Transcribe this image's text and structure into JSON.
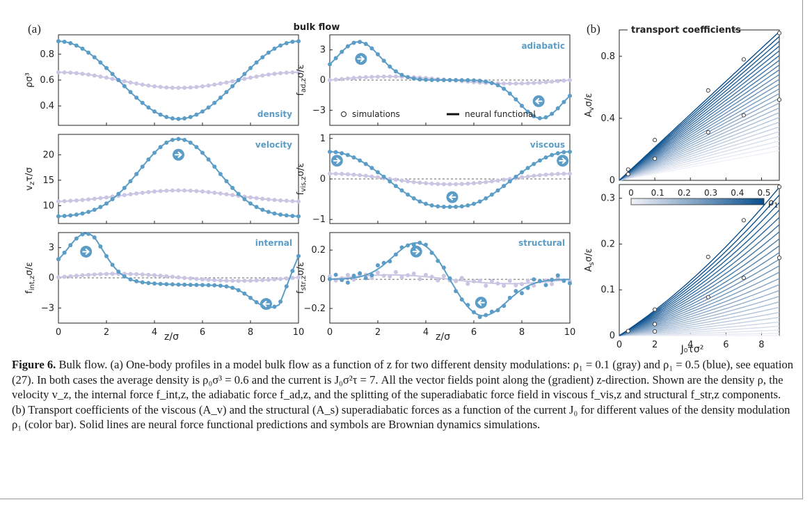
{
  "figure_title": "bulk flow",
  "panel_a_label": "(a)",
  "panel_b_label": "(b)",
  "legend_simulations": "simulations",
  "legend_neural": "neural functional",
  "colors": {
    "rho05": "#5b9dc6",
    "rho01": "#c9c5e2",
    "axis": "#222222"
  },
  "icons": {
    "flow_arrow": "right-arrow-circle-icon",
    "back_arrow": "left-arrow-circle-icon"
  },
  "chart_data": [
    {
      "id": "density",
      "type": "line",
      "tag": "density",
      "ylabel": "ρσ³",
      "xlabel": "",
      "xlim": [
        0,
        10
      ],
      "ylim": [
        0.25,
        0.95
      ],
      "yticks": [
        0.4,
        0.6,
        0.8
      ],
      "xticks": [
        0,
        2,
        4,
        6,
        8,
        10
      ],
      "series": [
        {
          "name": "ρ1 = 0.5",
          "curve": "dens05",
          "sim": "dens05"
        },
        {
          "name": "ρ1 = 0.1",
          "curve": "dens01",
          "sim": "dens01"
        }
      ]
    },
    {
      "id": "adiabatic",
      "type": "line",
      "tag": "adiabatic",
      "ylabel": "f_ad,z σ/ε",
      "xlabel": "",
      "xlim": [
        0,
        10
      ],
      "ylim": [
        -4.5,
        4.5
      ],
      "yticks": [
        -3,
        0,
        3
      ],
      "xticks": [
        0,
        2,
        4,
        6,
        8,
        10
      ],
      "zero_line": true,
      "series": [
        {
          "name": "ρ1 = 0.5",
          "curve": "ad05",
          "sim": "ad05"
        },
        {
          "name": "ρ1 = 0.1",
          "curve": "ad01",
          "sim": "ad01"
        }
      ]
    },
    {
      "id": "velocity",
      "type": "line",
      "tag": "velocity",
      "ylabel": "v_z τ/σ",
      "xlabel": "",
      "xlim": [
        0,
        10
      ],
      "ylim": [
        6.5,
        24
      ],
      "yticks": [
        10,
        15,
        20
      ],
      "xticks": [
        0,
        2,
        4,
        6,
        8,
        10
      ],
      "series": [
        {
          "name": "ρ1 = 0.5",
          "curve": "vel05",
          "sim": "vel05"
        },
        {
          "name": "ρ1 = 0.1",
          "curve": "vel01",
          "sim": "vel01"
        }
      ]
    },
    {
      "id": "viscous",
      "type": "line",
      "tag": "viscous",
      "ylabel": "f_vis,z σ/ε",
      "xlabel": "",
      "xlim": [
        0,
        10
      ],
      "ylim": [
        -1.1,
        1.1
      ],
      "yticks": [
        -1,
        0,
        1
      ],
      "xticks": [
        0,
        2,
        4,
        6,
        8,
        10
      ],
      "zero_line": true,
      "series": [
        {
          "name": "ρ1 = 0.5",
          "curve": "vis05",
          "sim": "vis05"
        },
        {
          "name": "ρ1 = 0.1",
          "curve": "vis01",
          "sim": "vis01"
        }
      ]
    },
    {
      "id": "internal",
      "type": "line",
      "tag": "internal",
      "ylabel": "f_int,z σ/ε",
      "xlabel": "z/σ",
      "xlim": [
        0,
        10
      ],
      "ylim": [
        -4.5,
        4.5
      ],
      "yticks": [
        -3,
        0,
        3
      ],
      "xticks": [
        0,
        2,
        4,
        6,
        8,
        10
      ],
      "zero_line": true,
      "series": [
        {
          "name": "ρ1 = 0.5",
          "curve": "int05",
          "sim": "int05"
        },
        {
          "name": "ρ1 = 0.1",
          "curve": "int01",
          "sim": "int01"
        }
      ]
    },
    {
      "id": "structural",
      "type": "line",
      "tag": "structural",
      "ylabel": "f_str,z σ/ε",
      "xlabel": "z/σ",
      "xlim": [
        0,
        10
      ],
      "ylim": [
        -0.3,
        0.32
      ],
      "yticks": [
        -0.2,
        0,
        0.2
      ],
      "xticks": [
        0,
        2,
        4,
        6,
        8,
        10
      ],
      "zero_line": true,
      "series": [
        {
          "name": "ρ1 = 0.5",
          "curve": "str05",
          "sim": "str05"
        },
        {
          "name": "ρ1 = 0.1",
          "curve": "str01",
          "sim": "str01"
        }
      ]
    },
    {
      "id": "Av",
      "type": "line",
      "title": "transport coefficients",
      "ylabel": "A_v σ/ε",
      "xlabel": "",
      "xlim": [
        0,
        9
      ],
      "ylim": [
        0,
        0.97
      ],
      "yticks": [
        0,
        0.4,
        0.8
      ],
      "xticks": [
        0,
        2,
        4,
        6,
        8
      ],
      "sim_J": [
        0.5,
        2,
        5,
        7,
        9
      ],
      "family": "Av",
      "points": [
        [
          0.5,
          0.07
        ],
        [
          2,
          0.26
        ],
        [
          5,
          0.58
        ],
        [
          7,
          0.78
        ],
        [
          9,
          0.95
        ],
        [
          9,
          0.52
        ],
        [
          7,
          0.42
        ],
        [
          5,
          0.31
        ],
        [
          2,
          0.14
        ],
        [
          0.5,
          0.04
        ]
      ]
    },
    {
      "id": "As",
      "type": "line",
      "ylabel": "A_s σ/ε",
      "xlabel": "J₀τσ²",
      "xlim": [
        0,
        9
      ],
      "ylim": [
        0,
        0.33
      ],
      "yticks": [
        0,
        0.1,
        0.2,
        0.3
      ],
      "xticks": [
        0,
        2,
        4,
        6,
        8
      ],
      "family": "As",
      "points": [
        [
          0.5,
          0.01
        ],
        [
          2,
          0.057
        ],
        [
          5,
          0.172
        ],
        [
          7,
          0.252
        ],
        [
          9,
          0.325
        ],
        [
          9,
          0.17
        ],
        [
          7,
          0.126
        ],
        [
          5,
          0.084
        ],
        [
          2,
          0.025
        ],
        [
          2,
          0.009
        ]
      ],
      "colorbar": {
        "label": "ρ₁",
        "ticks": [
          "0",
          "0.1",
          "0.2",
          "0.3",
          "0.4",
          "0.5"
        ]
      }
    }
  ],
  "caption": {
    "label": "Figure 6.",
    "text": " Bulk flow. (a) One-body profiles in a model bulk flow as a function of z for two different density modulations: ρ₁ = 0.1 (gray) and ρ₁ = 0.5 (blue), see equation (27). In both cases the average density is ρ₀σ³ = 0.6 and the current is J₀σ²τ = 7. All the vector fields point along the (gradient) z-direction. Shown are the density ρ, the velocity v_z, the internal force f_int,z, the adiabatic force f_ad,z, and the splitting of the superadiabatic force field in viscous f_vis,z and structural f_str,z components. (b) Transport coefficients of the viscous (A_v) and the structural (A_s) superadiabatic forces as a function of the current J₀ for different values of the density modulation ρ₁ (color bar). Solid lines are neural force functional predictions and symbols are Brownian dynamics simulations."
  }
}
